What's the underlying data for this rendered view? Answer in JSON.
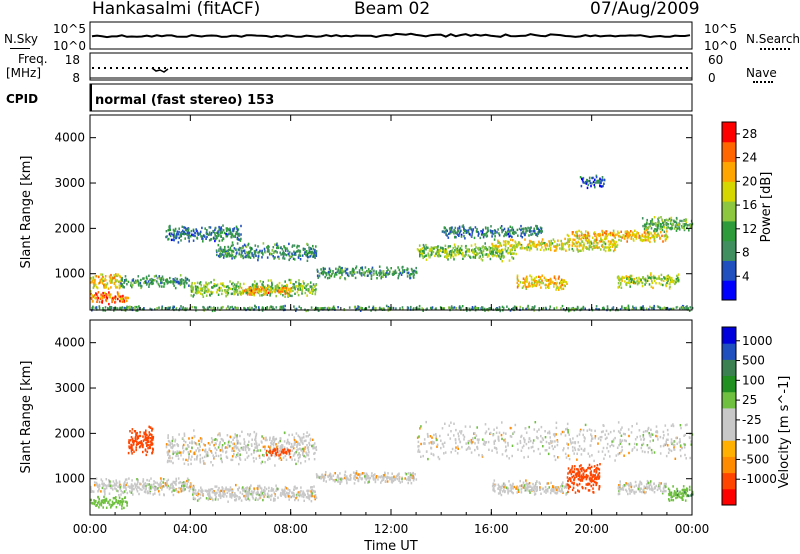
{
  "header": {
    "station": "Hankasalmi (fitACF)",
    "beam": "Beam 02",
    "date": "07/Aug/2009"
  },
  "side_labels": {
    "n_sky": "N.Sky",
    "n_search": "N.Search",
    "freq": "Freq.",
    "freq_unit": "[MHz]",
    "nave": "Nave",
    "cpid": "CPID",
    "noise_top_tick": "10^5",
    "noise_bottom_tick": "10^0",
    "freq_ticks": [
      "18",
      "8"
    ],
    "nave_ticks": [
      "60",
      "0"
    ]
  },
  "cpid_text": "normal (fast stereo) 153",
  "colors": {
    "power_scale": [
      "#0000ff",
      "#2050c0",
      "#3f8f5f",
      "#2e9b3a",
      "#8dc63f",
      "#d6d600",
      "#ffa500",
      "#ff6600",
      "#ff0000"
    ],
    "velocity_scale": [
      "#ff0000",
      "#ff4500",
      "#ff8c00",
      "#ffb000",
      "#c8c8c8",
      "#c8c8c8",
      "#70c040",
      "#209020",
      "#3a8050",
      "#2050c0",
      "#0000dd"
    ],
    "ground_scatter": "#c8c8c8"
  },
  "chart_data": [
    {
      "type": "heatmap",
      "name": "power",
      "ylabel": "Slant Range [km]",
      "xlabel": "",
      "x_ticks": [
        "00:00",
        "04:00",
        "08:00",
        "12:00",
        "16:00",
        "20:00",
        "00:00"
      ],
      "y_ticks": [
        "1000",
        "2000",
        "3000",
        "4000"
      ],
      "ylim": [
        200,
        4500
      ],
      "xlim_hours": [
        0,
        24
      ],
      "colorbar": {
        "label": "Power [dB]",
        "ticks": [
          "4",
          "8",
          "12",
          "16",
          "20",
          "24",
          "28"
        ],
        "range": [
          0,
          30
        ]
      },
      "scatter_bands": [
        {
          "t0": 0.0,
          "t1": 1.2,
          "r0": 650,
          "r1": 1050,
          "level": 20
        },
        {
          "t0": 0.0,
          "t1": 1.5,
          "r0": 350,
          "r1": 650,
          "level": 24
        },
        {
          "t0": 1.2,
          "t1": 4.0,
          "r0": 700,
          "r1": 1000,
          "level": 10
        },
        {
          "t0": 4.0,
          "t1": 9.0,
          "r0": 500,
          "r1": 900,
          "level": 14
        },
        {
          "t0": 6.0,
          "t1": 8.0,
          "r0": 550,
          "r1": 750,
          "level": 22
        },
        {
          "t0": 3.0,
          "t1": 6.0,
          "r0": 1700,
          "r1": 2100,
          "level": 8
        },
        {
          "t0": 5.0,
          "t1": 9.0,
          "r0": 1300,
          "r1": 1700,
          "level": 9
        },
        {
          "t0": 9.0,
          "t1": 13.0,
          "r0": 900,
          "r1": 1200,
          "level": 10
        },
        {
          "t0": 13.0,
          "t1": 17.0,
          "r0": 1300,
          "r1": 1700,
          "level": 14
        },
        {
          "t0": 16.0,
          "t1": 21.0,
          "r0": 1500,
          "r1": 1800,
          "level": 18
        },
        {
          "t0": 19.0,
          "t1": 23.0,
          "r0": 1700,
          "r1": 2000,
          "level": 20
        },
        {
          "t0": 22.0,
          "t1": 24.0,
          "r0": 1900,
          "r1": 2300,
          "level": 12
        },
        {
          "t0": 17.0,
          "t1": 19.0,
          "r0": 650,
          "r1": 1000,
          "level": 20
        },
        {
          "t0": 21.0,
          "t1": 23.5,
          "r0": 700,
          "r1": 1050,
          "level": 16
        },
        {
          "t0": 0.0,
          "t1": 24.0,
          "r0": 200,
          "r1": 320,
          "level": 10
        },
        {
          "t0": 19.5,
          "t1": 20.5,
          "r0": 2900,
          "r1": 3200,
          "level": 6
        },
        {
          "t0": 14.0,
          "t1": 18.0,
          "r0": 1800,
          "r1": 2100,
          "level": 8
        }
      ]
    },
    {
      "type": "heatmap",
      "name": "velocity",
      "ylabel": "Slant Range [km]",
      "xlabel": "Time UT",
      "x_ticks": [
        "00:00",
        "04:00",
        "08:00",
        "12:00",
        "16:00",
        "20:00",
        "00:00"
      ],
      "y_ticks": [
        "1000",
        "2000",
        "3000",
        "4000"
      ],
      "ylim": [
        200,
        4500
      ],
      "xlim_hours": [
        0,
        24
      ],
      "colorbar": {
        "label": "Velocity [m s^-1]",
        "ticks": [
          "1000",
          "500",
          "100",
          "25",
          "-25",
          "-100",
          "-500",
          "-1000"
        ]
      },
      "scatter_bands": [
        {
          "t0": 0.0,
          "t1": 4.0,
          "r0": 650,
          "r1": 1050,
          "v": 0
        },
        {
          "t0": 0.0,
          "t1": 1.5,
          "r0": 350,
          "r1": 650,
          "v": 60
        },
        {
          "t0": 1.5,
          "t1": 2.5,
          "r0": 1500,
          "r1": 2200,
          "v": -200
        },
        {
          "t0": 4.0,
          "t1": 9.0,
          "r0": 500,
          "r1": 900,
          "v": 0
        },
        {
          "t0": 3.0,
          "t1": 9.0,
          "r0": 1300,
          "r1": 2100,
          "v": 0
        },
        {
          "t0": 9.0,
          "t1": 13.0,
          "r0": 900,
          "r1": 1200,
          "v": 0
        },
        {
          "t0": 13.0,
          "t1": 24.0,
          "r0": 1400,
          "r1": 2300,
          "v": 0
        },
        {
          "t0": 16.0,
          "t1": 19.0,
          "r0": 650,
          "r1": 1000,
          "v": 0
        },
        {
          "t0": 19.0,
          "t1": 20.3,
          "r0": 700,
          "r1": 1400,
          "v": -300
        },
        {
          "t0": 21.0,
          "t1": 23.0,
          "r0": 650,
          "r1": 1000,
          "v": 0
        },
        {
          "t0": 23.0,
          "t1": 24.0,
          "r0": 500,
          "r1": 900,
          "v": 80
        },
        {
          "t0": 7.0,
          "t1": 8.0,
          "r0": 1500,
          "r1": 1700,
          "v": -200
        }
      ]
    }
  ]
}
